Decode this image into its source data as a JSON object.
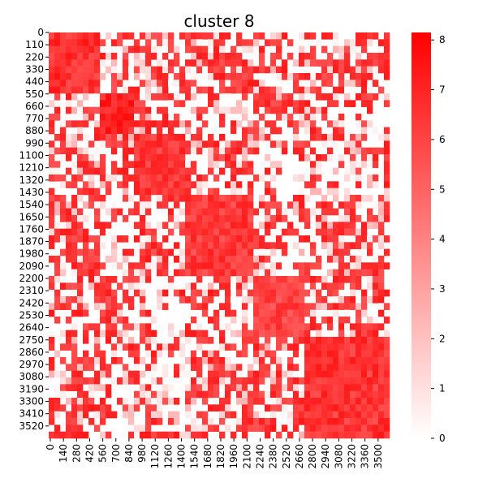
{
  "chart_data": {
    "type": "heatmap",
    "title": "cluster 8",
    "xlabel": "",
    "ylabel": "",
    "y_tick_labels": [
      "0",
      "110",
      "220",
      "330",
      "440",
      "550",
      "660",
      "770",
      "880",
      "990",
      "1100",
      "1210",
      "1320",
      "1430",
      "1540",
      "1650",
      "1760",
      "1870",
      "1980",
      "2090",
      "2200",
      "2310",
      "2420",
      "2530",
      "2640",
      "2750",
      "2860",
      "2970",
      "3080",
      "3190",
      "3300",
      "3410",
      "3520"
    ],
    "x_tick_labels": [
      "0",
      "140",
      "280",
      "420",
      "560",
      "700",
      "840",
      "980",
      "1120",
      "1260",
      "1400",
      "1540",
      "1680",
      "1820",
      "1960",
      "2100",
      "2240",
      "2380",
      "2520",
      "2660",
      "2800",
      "2940",
      "3080",
      "3220",
      "3360",
      "3500"
    ],
    "matrix_size": 3600,
    "value_range": [
      0,
      8.15
    ],
    "colorbar_ticks": [
      "0",
      "1",
      "2",
      "3",
      "4",
      "5",
      "6",
      "7",
      "8"
    ],
    "colormap": {
      "low": "#ffffff",
      "high": "#ff0000"
    },
    "blocks": [
      {
        "id": "A",
        "rows": [
          0,
          560
        ],
        "cols": [
          0,
          560
        ],
        "value": 7.6
      },
      {
        "id": "B",
        "rows": [
          560,
          900
        ],
        "cols": [
          560,
          900
        ],
        "value": 8.1
      },
      {
        "id": "C",
        "rows": [
          900,
          1420
        ],
        "cols": [
          900,
          1420
        ],
        "value": 7.3
      },
      {
        "id": "D",
        "rows": [
          1420,
          2180
        ],
        "cols": [
          1420,
          2180
        ],
        "value": 7.2
      },
      {
        "id": "E",
        "rows": [
          2180,
          2700
        ],
        "cols": [
          2180,
          2700
        ],
        "value": 6.9
      },
      {
        "id": "F",
        "rows": [
          2700,
          3600
        ],
        "cols": [
          2700,
          3600
        ],
        "value": 7.4
      }
    ],
    "block_affinity": [
      [
        1.0,
        0.25,
        0.55,
        0.6,
        0.35,
        0.5
      ],
      [
        0.25,
        1.0,
        0.45,
        0.2,
        0.55,
        0.35
      ],
      [
        0.55,
        0.45,
        1.0,
        0.5,
        0.2,
        0.3
      ],
      [
        0.6,
        0.2,
        0.5,
        1.0,
        0.45,
        0.55
      ],
      [
        0.35,
        0.55,
        0.2,
        0.45,
        1.0,
        0.5
      ],
      [
        0.5,
        0.35,
        0.3,
        0.55,
        0.5,
        1.0
      ]
    ]
  }
}
